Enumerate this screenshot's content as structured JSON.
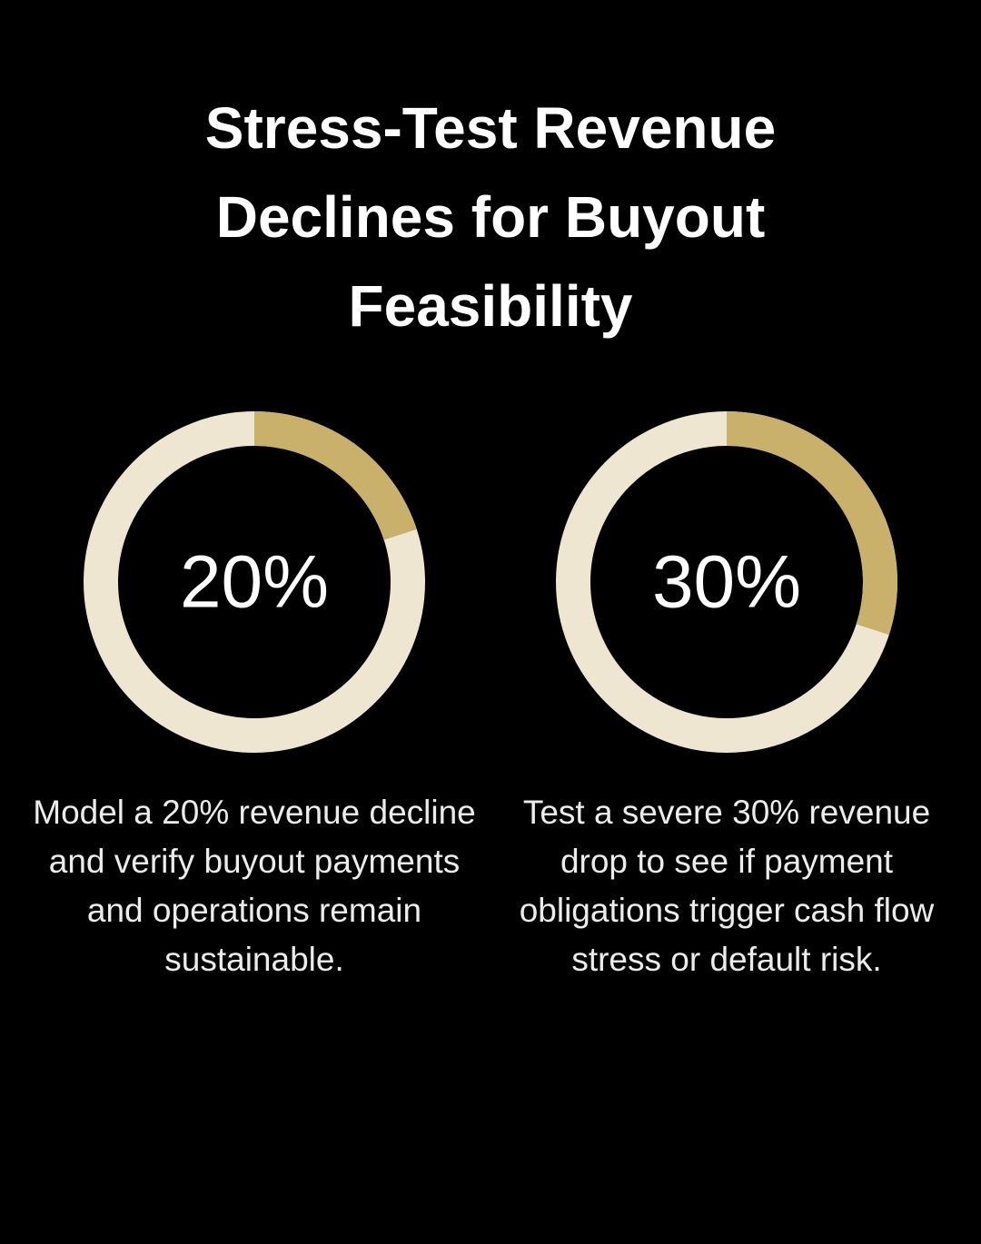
{
  "title": "Stress-Test Revenue Declines for Buyout Feasibility",
  "chart_data": [
    {
      "type": "donut",
      "values": [
        20
      ],
      "value_labels": [
        "20%"
      ],
      "color": "#c9b06b",
      "track_color": "#efe6d2",
      "caption": "Model a 20% revenue decline and verify buyout payments and operations remain sustainable."
    },
    {
      "type": "donut",
      "values": [
        30
      ],
      "value_labels": [
        "30%"
      ],
      "color": "#c9b06b",
      "track_color": "#efe6d2",
      "caption": "Test a severe 30% revenue drop to see if payment obligations trigger cash flow stress or default risk."
    }
  ]
}
